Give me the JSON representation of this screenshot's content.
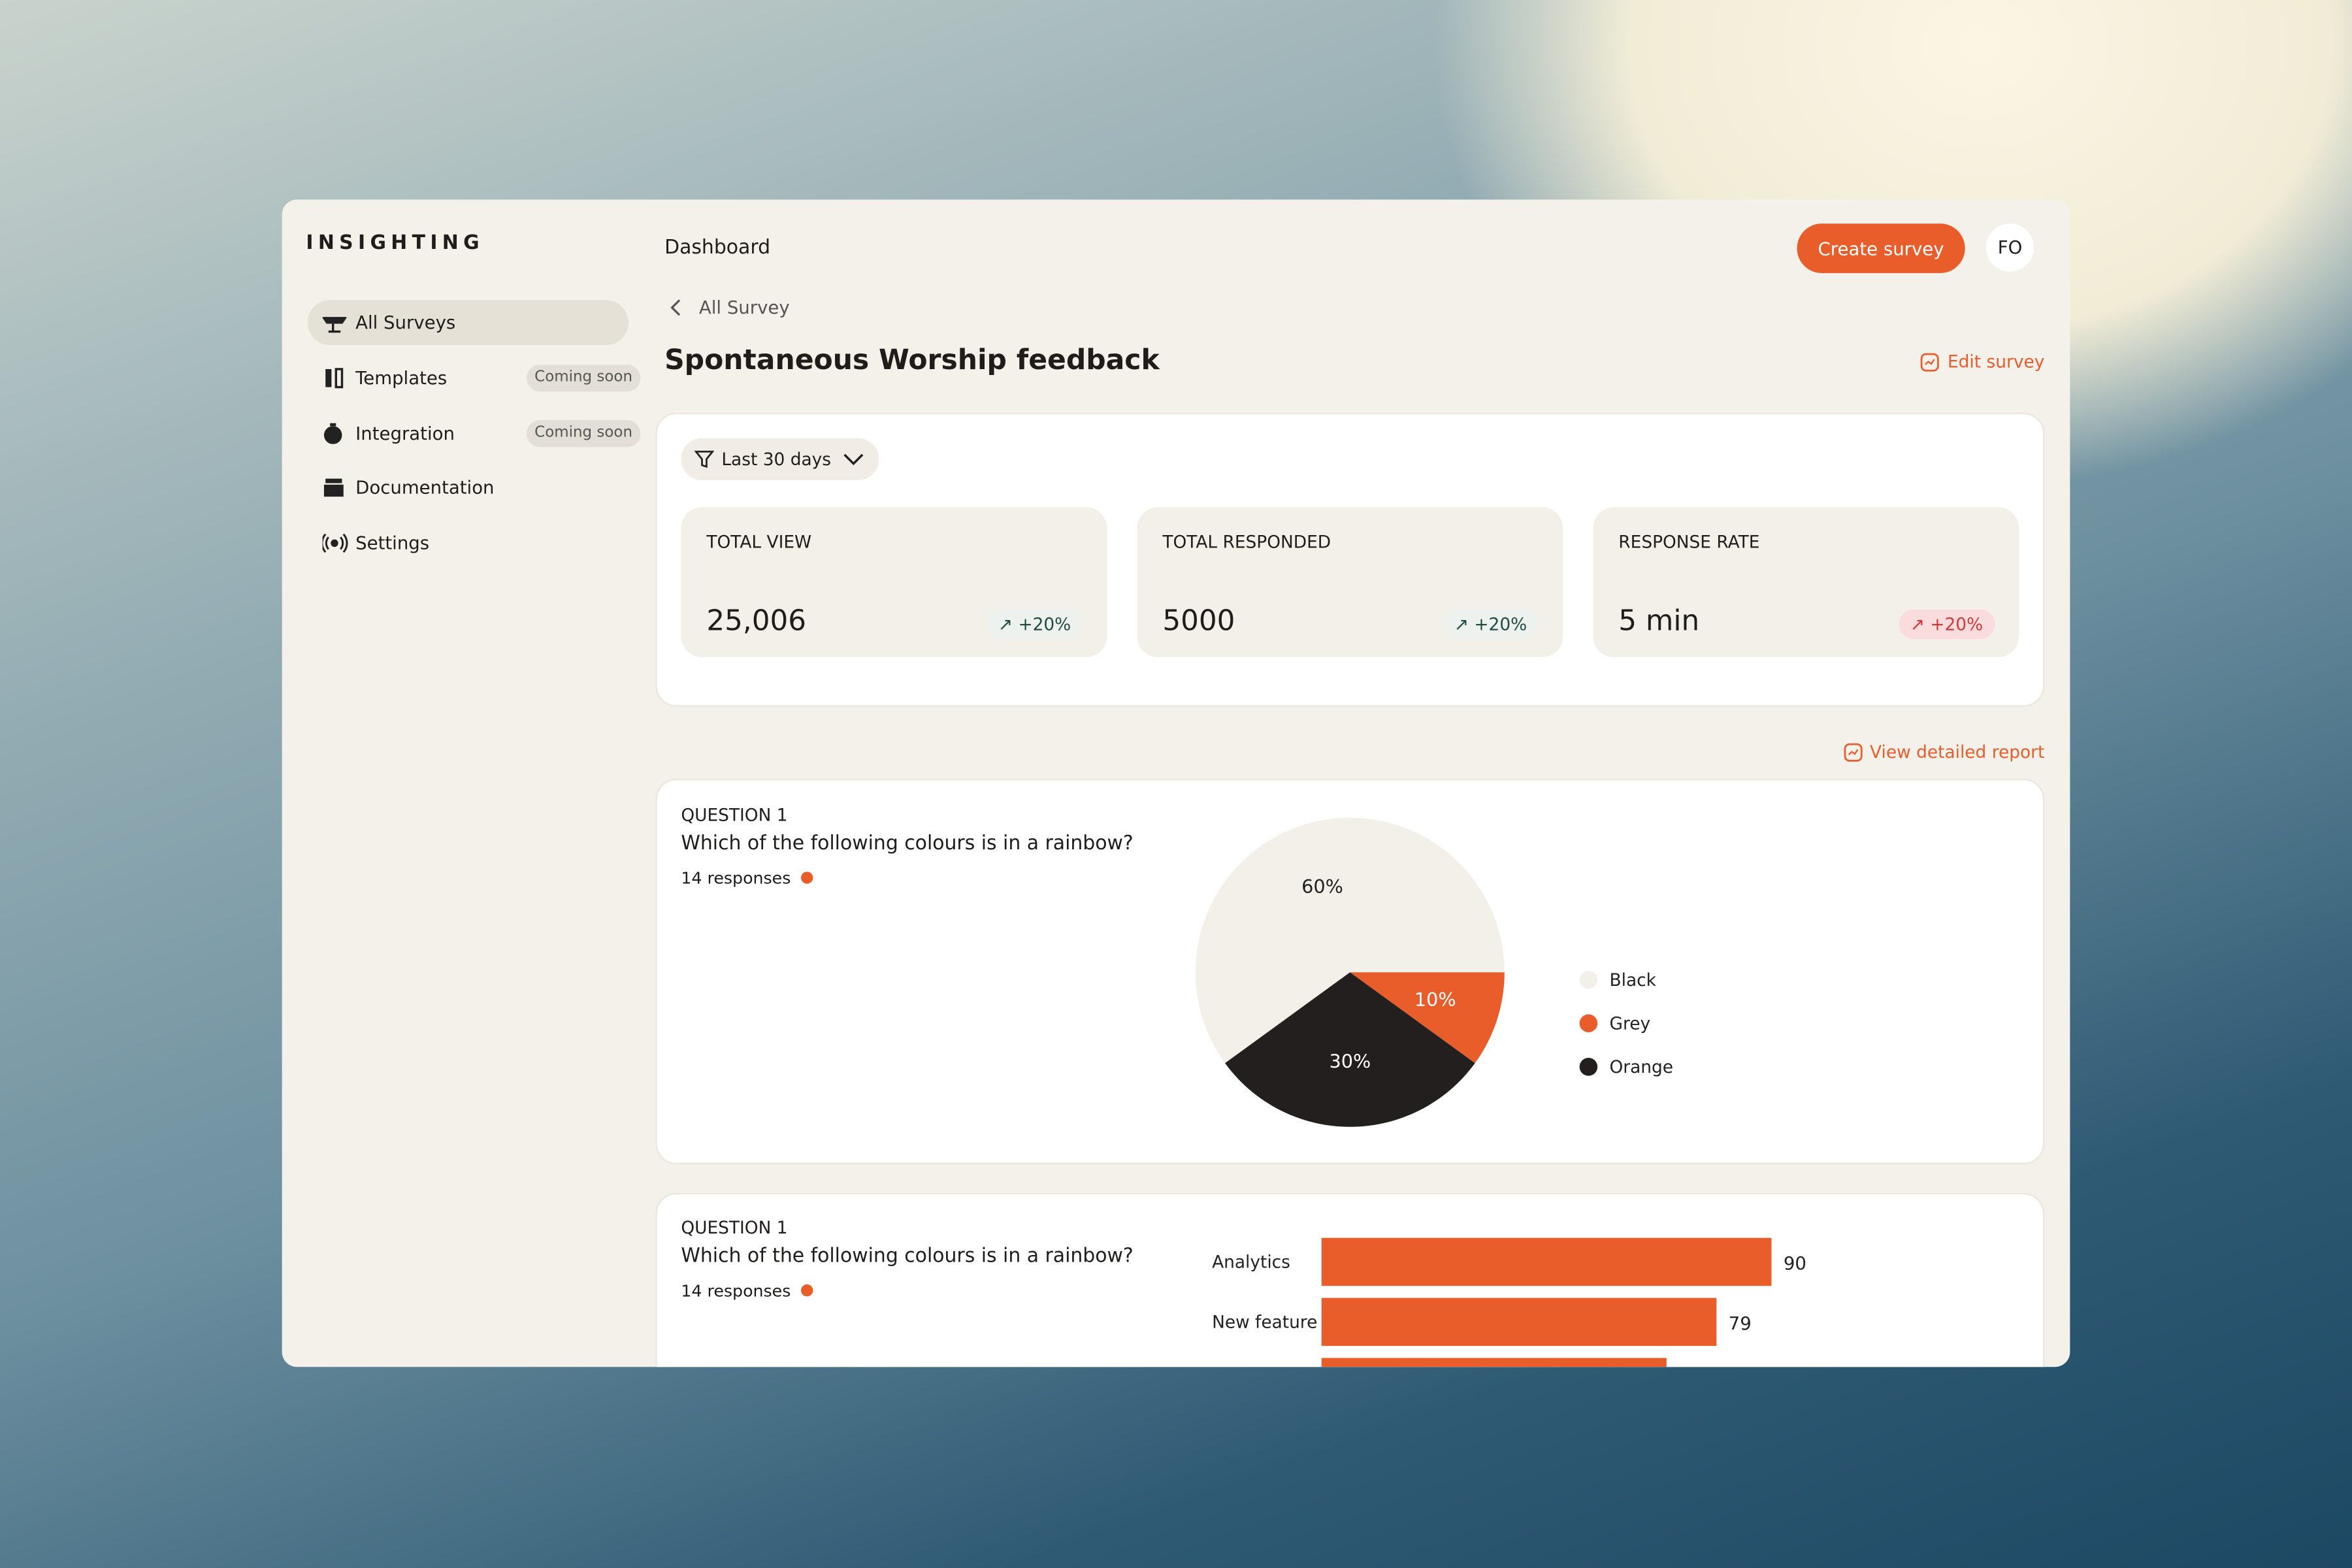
{
  "sidebar": {
    "brand": "INSIGHTING",
    "nav": [
      {
        "label": "All Surveys"
      },
      {
        "label": "Templates",
        "badge": "Coming soon"
      },
      {
        "label": "Integration",
        "badge": "Coming soon"
      },
      {
        "label": "Documentation"
      },
      {
        "label": "Settings"
      }
    ]
  },
  "header": {
    "title": "Dashboard",
    "button": "Create survey",
    "avatar": "FO"
  },
  "breadcrumb": "All Survey",
  "page_title": "Spontaneous Worship feedback",
  "edit_link": "Edit survey",
  "filter": "Last 30 days",
  "stats": [
    {
      "label": "TOTAL VIEW",
      "value": "25,006",
      "change": "+20%"
    },
    {
      "label": "TOTAL RESPONDED",
      "value": "5000",
      "change": "+20%"
    },
    {
      "label": "RESPONSE RATE",
      "value": "5 min",
      "change": "+20%"
    }
  ],
  "report_link": "View detailed report",
  "questions": [
    {
      "kicker": "QUESTION 1",
      "text": "Which of the following colours is in a rainbow?",
      "responses": "14 responses"
    },
    {
      "kicker": "QUESTION 1",
      "text": "Which of the following colours is in a rainbow?",
      "responses": "14 responses"
    }
  ],
  "chart_data": [
    {
      "type": "pie",
      "categories": [
        "Black",
        "Grey",
        "Orange"
      ],
      "values": [
        60,
        10,
        30
      ],
      "value_labels": [
        "60%",
        "10%",
        "30%"
      ],
      "colors": [
        "#f3f0ea",
        "#e85d2a",
        "#231f1e"
      ]
    },
    {
      "type": "bar",
      "orientation": "horizontal",
      "categories": [
        "Analytics",
        "New feature",
        null
      ],
      "values": [
        90,
        79,
        69
      ],
      "color": "#e85d2a"
    }
  ]
}
